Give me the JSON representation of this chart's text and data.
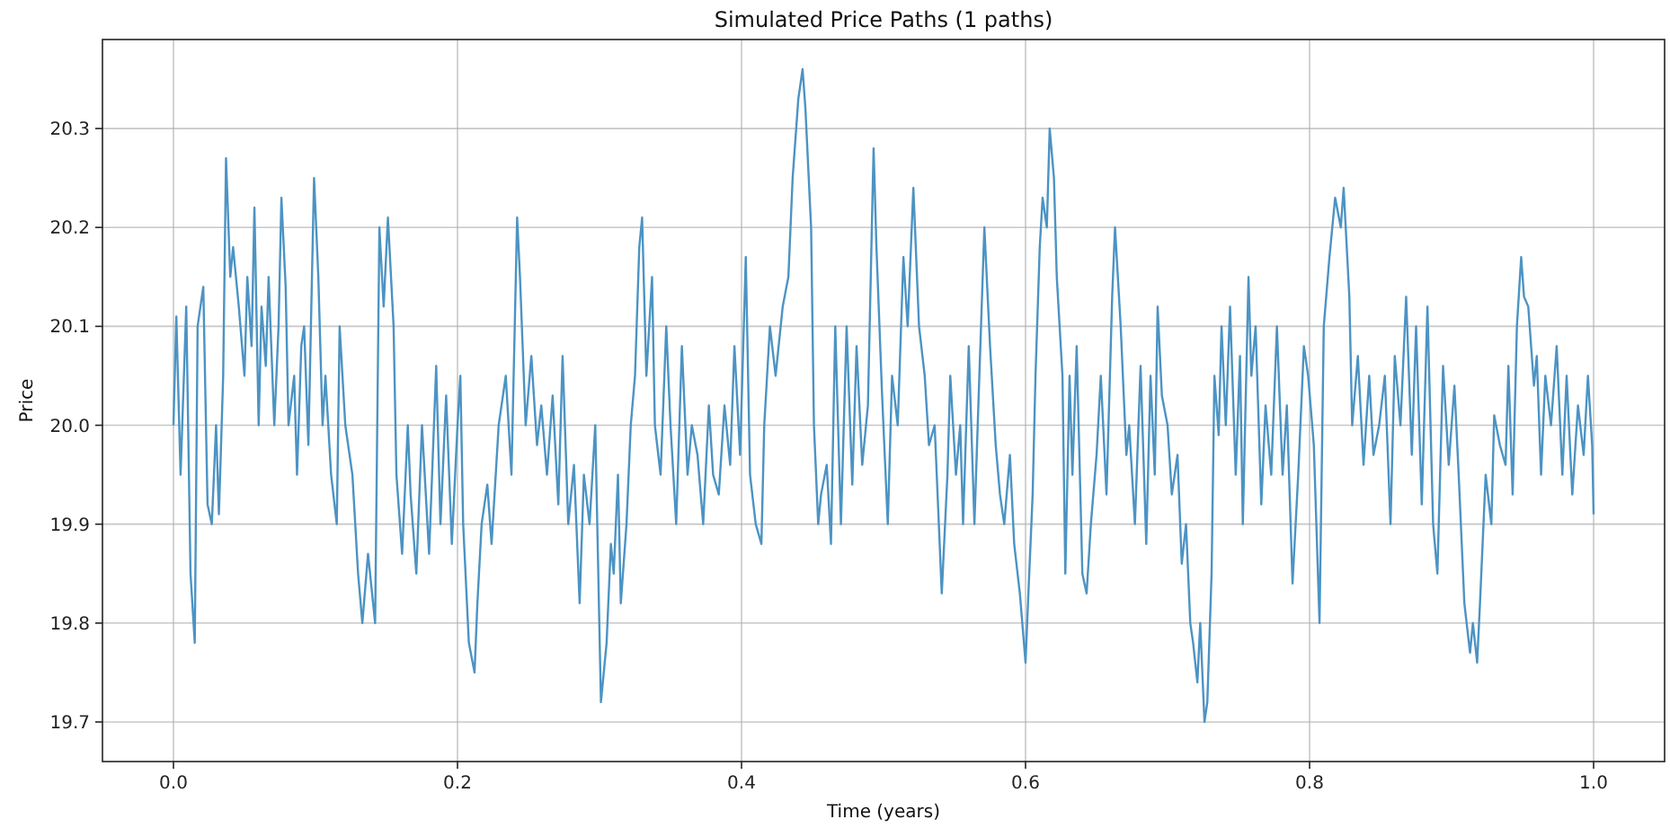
{
  "chart_data": {
    "type": "line",
    "title": "Simulated Price Paths (1 paths)",
    "xlabel": "Time (years)",
    "ylabel": "Price",
    "xlim": [
      -0.05,
      1.05
    ],
    "ylim": [
      19.66,
      20.39
    ],
    "xticks": [
      {
        "value": 0,
        "label": "0.0"
      },
      {
        "value": 0.2,
        "label": "0.2"
      },
      {
        "value": 0.4,
        "label": "0.4"
      },
      {
        "value": 0.6,
        "label": "0.6"
      },
      {
        "value": 0.8,
        "label": "0.8"
      },
      {
        "value": 1,
        "label": "1.0"
      }
    ],
    "yticks": [
      19.7,
      19.8,
      19.9,
      {
        "value": 20,
        "label": "20.0"
      },
      20.1,
      20.2,
      20.3
    ],
    "grid": true,
    "series": [
      {
        "color": "#4c93c3",
        "x": [
          0,
          0.002,
          0.005,
          0.009,
          0.012,
          0.015,
          0.017,
          0.021,
          0.024,
          0.027,
          0.03,
          0.032,
          0.035,
          0.037,
          0.04,
          0.042,
          0.046,
          0.05,
          0.052,
          0.055,
          0.057,
          0.06,
          0.062,
          0.065,
          0.067,
          0.071,
          0.074,
          0.076,
          0.079,
          0.081,
          0.085,
          0.087,
          0.09,
          0.092,
          0.095,
          0.099,
          0.102,
          0.105,
          0.107,
          0.111,
          0.115,
          0.117,
          0.121,
          0.126,
          0.13,
          0.133,
          0.137,
          0.142,
          0.145,
          0.148,
          0.151,
          0.155,
          0.157,
          0.161,
          0.165,
          0.167,
          0.171,
          0.175,
          0.18,
          0.185,
          0.188,
          0.192,
          0.196,
          0.2,
          0.202,
          0.204,
          0.208,
          0.212,
          0.214,
          0.217,
          0.221,
          0.224,
          0.229,
          0.234,
          0.238,
          0.242,
          0.244,
          0.248,
          0.252,
          0.256,
          0.259,
          0.263,
          0.267,
          0.271,
          0.274,
          0.278,
          0.282,
          0.286,
          0.289,
          0.293,
          0.297,
          0.301,
          0.303,
          0.305,
          0.308,
          0.31,
          0.313,
          0.315,
          0.319,
          0.322,
          0.325,
          0.328,
          0.33,
          0.333,
          0.337,
          0.339,
          0.343,
          0.347,
          0.35,
          0.354,
          0.358,
          0.362,
          0.365,
          0.369,
          0.373,
          0.377,
          0.38,
          0.384,
          0.388,
          0.392,
          0.395,
          0.399,
          0.403,
          0.406,
          0.41,
          0.414,
          0.416,
          0.42,
          0.424,
          0.429,
          0.433,
          0.436,
          0.44,
          0.443,
          0.445,
          0.449,
          0.451,
          0.454,
          0.456,
          0.46,
          0.463,
          0.466,
          0.47,
          0.474,
          0.478,
          0.481,
          0.485,
          0.489,
          0.493,
          0.495,
          0.499,
          0.503,
          0.506,
          0.51,
          0.514,
          0.517,
          0.521,
          0.525,
          0.529,
          0.532,
          0.536,
          0.541,
          0.545,
          0.547,
          0.551,
          0.554,
          0.556,
          0.56,
          0.564,
          0.567,
          0.571,
          0.575,
          0.579,
          0.582,
          0.585,
          0.589,
          0.592,
          0.596,
          0.6,
          0.602,
          0.605,
          0.607,
          0.61,
          0.612,
          0.615,
          0.617,
          0.62,
          0.622,
          0.626,
          0.628,
          0.631,
          0.633,
          0.636,
          0.64,
          0.643,
          0.646,
          0.65,
          0.653,
          0.657,
          0.661,
          0.663,
          0.667,
          0.671,
          0.673,
          0.677,
          0.681,
          0.685,
          0.688,
          0.691,
          0.693,
          0.696,
          0.7,
          0.703,
          0.707,
          0.71,
          0.713,
          0.716,
          0.718,
          0.721,
          0.723,
          0.726,
          0.728,
          0.731,
          0.733,
          0.736,
          0.738,
          0.741,
          0.744,
          0.748,
          0.751,
          0.753,
          0.757,
          0.759,
          0.762,
          0.766,
          0.769,
          0.773,
          0.777,
          0.781,
          0.784,
          0.788,
          0.792,
          0.796,
          0.799,
          0.803,
          0.807,
          0.81,
          0.814,
          0.818,
          0.822,
          0.824,
          0.828,
          0.83,
          0.834,
          0.838,
          0.842,
          0.845,
          0.849,
          0.853,
          0.857,
          0.86,
          0.864,
          0.868,
          0.872,
          0.875,
          0.879,
          0.883,
          0.887,
          0.89,
          0.894,
          0.898,
          0.902,
          0.905,
          0.909,
          0.913,
          0.915,
          0.918,
          0.92,
          0.924,
          0.928,
          0.93,
          0.934,
          0.938,
          0.94,
          0.943,
          0.946,
          0.949,
          0.951,
          0.954,
          0.958,
          0.96,
          0.963,
          0.966,
          0.97,
          0.974,
          0.978,
          0.981,
          0.985,
          0.989,
          0.993,
          0.996,
          0.999,
          1.0
        ],
        "values": [
          20.0,
          20.11,
          19.95,
          20.12,
          19.85,
          19.78,
          20.1,
          20.14,
          19.92,
          19.9,
          20.0,
          19.91,
          20.05,
          20.27,
          20.15,
          20.18,
          20.12,
          20.05,
          20.15,
          20.08,
          20.22,
          20.0,
          20.12,
          20.06,
          20.15,
          20.0,
          20.1,
          20.23,
          20.14,
          20.0,
          20.05,
          19.95,
          20.08,
          20.1,
          19.98,
          20.25,
          20.15,
          20.0,
          20.05,
          19.95,
          19.9,
          20.1,
          20.0,
          19.95,
          19.85,
          19.8,
          19.87,
          19.8,
          20.2,
          20.12,
          20.21,
          20.1,
          19.95,
          19.87,
          20.0,
          19.93,
          19.85,
          20.0,
          19.87,
          20.06,
          19.9,
          20.03,
          19.88,
          20.0,
          20.05,
          19.9,
          19.78,
          19.75,
          19.82,
          19.9,
          19.94,
          19.88,
          20.0,
          20.05,
          19.95,
          20.21,
          20.15,
          20.0,
          20.07,
          19.98,
          20.02,
          19.95,
          20.03,
          19.92,
          20.07,
          19.9,
          19.96,
          19.82,
          19.95,
          19.9,
          20.0,
          19.72,
          19.75,
          19.78,
          19.88,
          19.85,
          19.95,
          19.82,
          19.9,
          20.0,
          20.05,
          20.18,
          20.21,
          20.05,
          20.15,
          20.0,
          19.95,
          20.1,
          20.0,
          19.9,
          20.08,
          19.95,
          20.0,
          19.97,
          19.9,
          20.02,
          19.95,
          19.93,
          20.02,
          19.96,
          20.08,
          19.97,
          20.17,
          19.95,
          19.9,
          19.88,
          20.0,
          20.1,
          20.05,
          20.12,
          20.15,
          20.25,
          20.33,
          20.36,
          20.32,
          20.2,
          20.0,
          19.9,
          19.93,
          19.96,
          19.88,
          20.1,
          19.9,
          20.1,
          19.94,
          20.08,
          19.96,
          20.02,
          20.28,
          20.18,
          20.03,
          19.9,
          20.05,
          20.0,
          20.17,
          20.1,
          20.24,
          20.1,
          20.05,
          19.98,
          20.0,
          19.83,
          19.95,
          20.05,
          19.95,
          20.0,
          19.9,
          20.08,
          19.9,
          20.03,
          20.2,
          20.08,
          19.98,
          19.93,
          19.9,
          19.97,
          19.88,
          19.83,
          19.76,
          19.83,
          19.93,
          20.05,
          20.18,
          20.23,
          20.2,
          20.3,
          20.25,
          20.15,
          20.05,
          19.85,
          20.05,
          19.95,
          20.08,
          19.85,
          19.83,
          19.9,
          19.97,
          20.05,
          19.93,
          20.13,
          20.2,
          20.1,
          19.97,
          20.0,
          19.9,
          20.06,
          19.88,
          20.05,
          19.95,
          20.12,
          20.03,
          20.0,
          19.93,
          19.97,
          19.86,
          19.9,
          19.8,
          19.78,
          19.74,
          19.8,
          19.7,
          19.72,
          19.85,
          20.05,
          19.99,
          20.1,
          20.0,
          20.12,
          19.95,
          20.07,
          19.9,
          20.15,
          20.05,
          20.1,
          19.92,
          20.02,
          19.95,
          20.1,
          19.95,
          20.02,
          19.84,
          19.95,
          20.08,
          20.05,
          19.98,
          19.8,
          20.1,
          20.17,
          20.23,
          20.2,
          20.24,
          20.13,
          20.0,
          20.07,
          19.96,
          20.05,
          19.97,
          20.0,
          20.05,
          19.9,
          20.07,
          20.0,
          20.13,
          19.97,
          20.1,
          19.92,
          20.12,
          19.9,
          19.85,
          20.06,
          19.96,
          20.04,
          19.95,
          19.82,
          19.77,
          19.8,
          19.76,
          19.82,
          19.95,
          19.9,
          20.01,
          19.98,
          19.96,
          20.06,
          19.93,
          20.1,
          20.17,
          20.13,
          20.12,
          20.04,
          20.07,
          19.95,
          20.05,
          20.0,
          20.08,
          19.95,
          20.05,
          19.93,
          20.02,
          19.97,
          20.05,
          19.98,
          19.91
        ]
      }
    ]
  }
}
